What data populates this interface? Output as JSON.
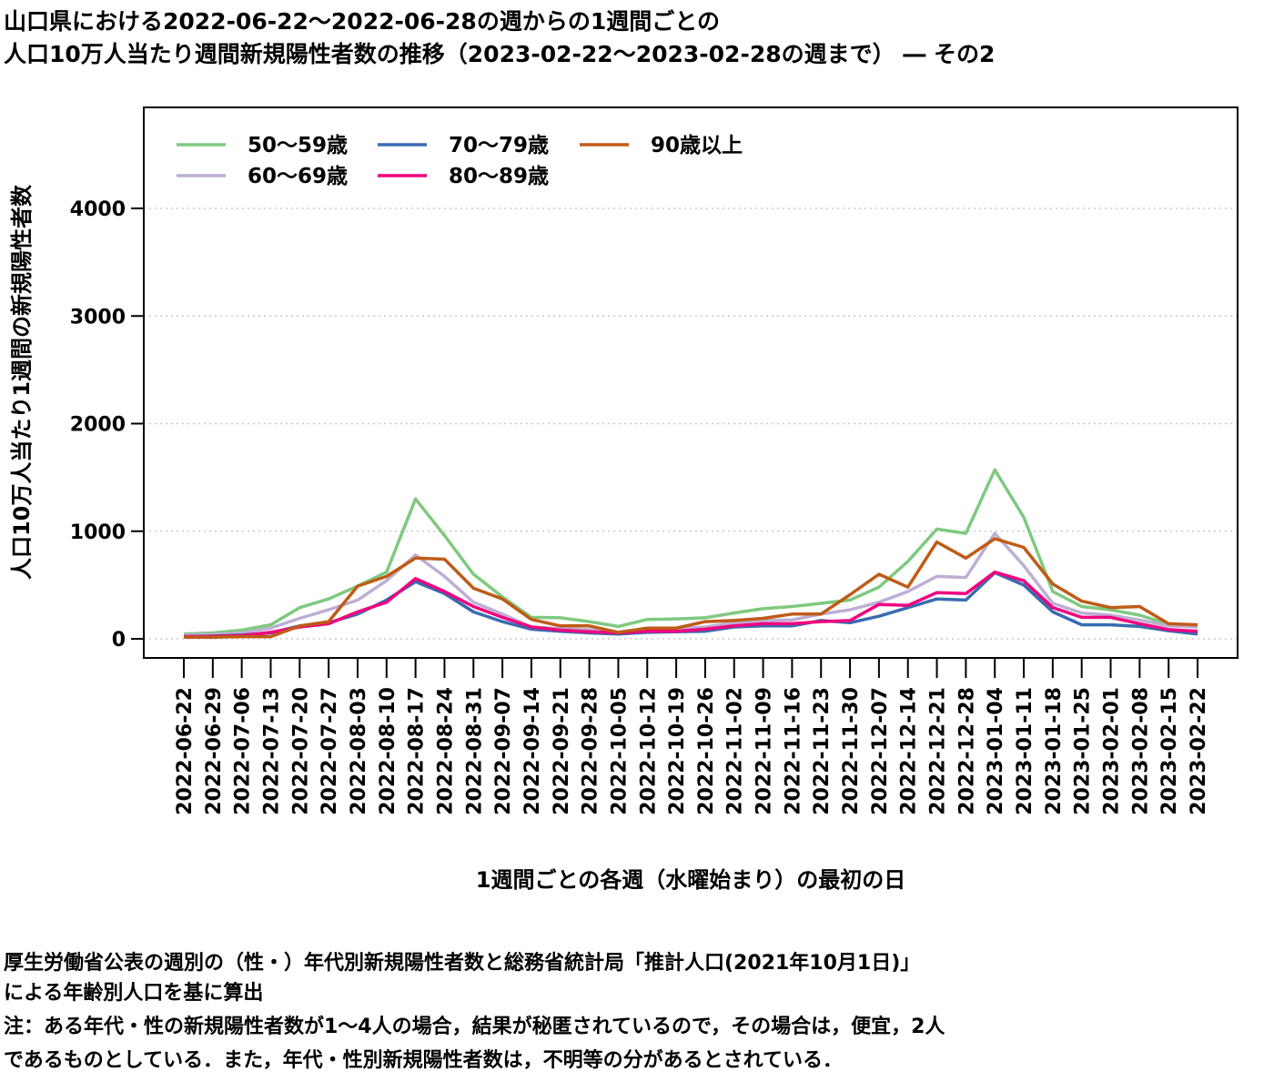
{
  "title": {
    "line1": "山口県における2022-06-22～2022-06-28の週からの1週間ごとの",
    "line2": "人口10万人当たり週間新規陽性者数の推移（2023-02-22～2023-02-28の週まで） ― その2"
  },
  "notes": {
    "line1": "厚生労働省公表の週別の（性・）年代別新規陽性者数と総務省統計局「推計人口(2021年10月1日)」",
    "line2": "による年齢別人口を基に算出",
    "line3": "注：ある年代・性の新規陽性者数が1～4人の場合，結果が秘匿されているので，その場合は，便宜，2人",
    "line4": "であるものとしている．また，年代・性別新規陽性者数は，不明等の分があるとされている．"
  },
  "chart_data": {
    "type": "line",
    "xlabel": "1週間ごとの各週（水曜始まり）の最初の日",
    "ylabel": "人口10万人当たり1週間の新規陽性者数",
    "ylim": [
      -200,
      4950
    ],
    "yticks": [
      0,
      1000,
      2000,
      3000,
      4000
    ],
    "grid": "horizontal dotted",
    "legend_position": "top-left",
    "categories": [
      "2022-06-22",
      "2022-06-29",
      "2022-07-06",
      "2022-07-13",
      "2022-07-20",
      "2022-07-27",
      "2022-08-03",
      "2022-08-10",
      "2022-08-17",
      "2022-08-24",
      "2022-08-31",
      "2022-09-07",
      "2022-09-14",
      "2022-09-21",
      "2022-09-28",
      "2022-10-05",
      "2022-10-12",
      "2022-10-19",
      "2022-10-26",
      "2022-11-02",
      "2022-11-09",
      "2022-11-16",
      "2022-11-23",
      "2022-11-30",
      "2022-12-07",
      "2022-12-14",
      "2022-12-21",
      "2022-12-28",
      "2023-01-04",
      "2023-01-11",
      "2023-01-18",
      "2023-01-25",
      "2023-02-01",
      "2023-02-08",
      "2023-02-15",
      "2023-02-22"
    ],
    "series": [
      {
        "name": "50～59歳",
        "color": "#7fc97f",
        "values": [
          45,
          55,
          80,
          130,
          290,
          370,
          490,
          620,
          1300,
          960,
          600,
          390,
          200,
          195,
          160,
          115,
          180,
          185,
          195,
          240,
          280,
          300,
          330,
          360,
          480,
          720,
          1020,
          980,
          1570,
          1130,
          440,
          300,
          270,
          220,
          135,
          120
        ]
      },
      {
        "name": "60～69歳",
        "color": "#beaed4",
        "values": [
          35,
          40,
          55,
          100,
          190,
          270,
          360,
          540,
          780,
          580,
          340,
          230,
          110,
          95,
          85,
          60,
          90,
          95,
          110,
          150,
          170,
          175,
          230,
          270,
          340,
          440,
          580,
          570,
          980,
          680,
          330,
          240,
          220,
          175,
          120,
          110
        ]
      },
      {
        "name": "70～79歳",
        "color": "#386cb0",
        "values": [
          20,
          25,
          35,
          55,
          120,
          150,
          230,
          360,
          530,
          420,
          250,
          160,
          90,
          70,
          55,
          45,
          60,
          65,
          70,
          110,
          120,
          120,
          170,
          150,
          210,
          290,
          370,
          360,
          615,
          500,
          250,
          130,
          130,
          115,
          75,
          45
        ]
      },
      {
        "name": "80～89歳",
        "color": "#f0027f",
        "values": [
          20,
          22,
          30,
          60,
          110,
          140,
          250,
          340,
          560,
          440,
          300,
          200,
          110,
          80,
          65,
          55,
          70,
          70,
          90,
          120,
          140,
          140,
          160,
          170,
          320,
          310,
          430,
          420,
          620,
          540,
          290,
          200,
          200,
          140,
          85,
          70
        ]
      },
      {
        "name": "90歳以上",
        "color": "#bf5b17",
        "values": [
          15,
          15,
          20,
          20,
          120,
          160,
          490,
          580,
          750,
          740,
          470,
          370,
          180,
          120,
          120,
          60,
          100,
          100,
          160,
          170,
          190,
          230,
          230,
          410,
          600,
          480,
          900,
          750,
          930,
          850,
          510,
          350,
          290,
          300,
          140,
          130
        ]
      }
    ]
  }
}
